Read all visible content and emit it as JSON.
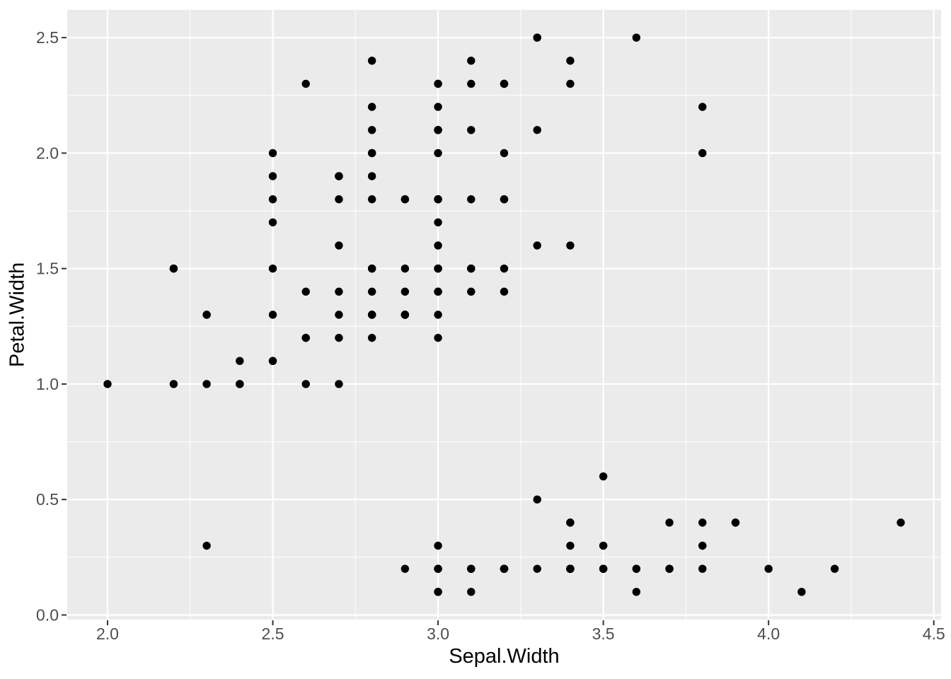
{
  "chart_data": {
    "type": "scatter",
    "title": "",
    "xlabel": "Sepal.Width",
    "ylabel": "Petal.Width",
    "x_ticks": [
      2.0,
      2.5,
      3.0,
      3.5,
      4.0,
      4.5
    ],
    "y_ticks": [
      0.0,
      0.5,
      1.0,
      1.5,
      2.0,
      2.5
    ],
    "x_minor_ticks": [
      2.25,
      2.75,
      3.25,
      3.75,
      4.25
    ],
    "y_minor_ticks": [
      0.25,
      0.75,
      1.25,
      1.75,
      2.25
    ],
    "xlim": [
      1.878,
      4.522
    ],
    "ylim": [
      -0.02,
      2.62
    ],
    "tick_decimals": 1,
    "grid": true,
    "legend_position": "none",
    "point_radius_px": 5.7,
    "points": [
      [
        3.5,
        0.2
      ],
      [
        3.0,
        0.2
      ],
      [
        3.2,
        0.2
      ],
      [
        3.1,
        0.2
      ],
      [
        3.6,
        0.2
      ],
      [
        3.9,
        0.4
      ],
      [
        3.4,
        0.3
      ],
      [
        3.4,
        0.2
      ],
      [
        2.9,
        0.2
      ],
      [
        3.1,
        0.1
      ],
      [
        3.7,
        0.2
      ],
      [
        3.4,
        0.2
      ],
      [
        3.0,
        0.1
      ],
      [
        3.0,
        0.1
      ],
      [
        4.0,
        0.2
      ],
      [
        4.4,
        0.4
      ],
      [
        3.9,
        0.4
      ],
      [
        3.5,
        0.3
      ],
      [
        3.8,
        0.3
      ],
      [
        3.8,
        0.3
      ],
      [
        3.4,
        0.2
      ],
      [
        3.7,
        0.4
      ],
      [
        3.6,
        0.2
      ],
      [
        3.3,
        0.5
      ],
      [
        3.4,
        0.2
      ],
      [
        3.0,
        0.2
      ],
      [
        3.4,
        0.4
      ],
      [
        3.5,
        0.2
      ],
      [
        3.4,
        0.2
      ],
      [
        3.2,
        0.2
      ],
      [
        3.1,
        0.2
      ],
      [
        3.4,
        0.4
      ],
      [
        4.1,
        0.1
      ],
      [
        4.2,
        0.2
      ],
      [
        3.1,
        0.2
      ],
      [
        3.2,
        0.2
      ],
      [
        3.5,
        0.2
      ],
      [
        3.6,
        0.1
      ],
      [
        3.0,
        0.2
      ],
      [
        3.4,
        0.2
      ],
      [
        3.5,
        0.3
      ],
      [
        2.3,
        0.3
      ],
      [
        3.2,
        0.2
      ],
      [
        3.5,
        0.6
      ],
      [
        3.8,
        0.4
      ],
      [
        3.0,
        0.3
      ],
      [
        3.8,
        0.2
      ],
      [
        3.2,
        0.2
      ],
      [
        3.7,
        0.2
      ],
      [
        3.3,
        0.2
      ],
      [
        3.2,
        1.4
      ],
      [
        3.2,
        1.5
      ],
      [
        3.1,
        1.5
      ],
      [
        2.3,
        1.3
      ],
      [
        2.8,
        1.5
      ],
      [
        2.8,
        1.3
      ],
      [
        3.3,
        1.6
      ],
      [
        2.4,
        1.0
      ],
      [
        2.9,
        1.3
      ],
      [
        2.7,
        1.4
      ],
      [
        2.0,
        1.0
      ],
      [
        3.0,
        1.5
      ],
      [
        2.2,
        1.0
      ],
      [
        2.9,
        1.4
      ],
      [
        2.9,
        1.3
      ],
      [
        3.1,
        1.4
      ],
      [
        3.0,
        1.5
      ],
      [
        2.7,
        1.0
      ],
      [
        2.2,
        1.5
      ],
      [
        2.5,
        1.1
      ],
      [
        3.2,
        1.8
      ],
      [
        2.8,
        1.3
      ],
      [
        2.5,
        1.5
      ],
      [
        2.8,
        1.2
      ],
      [
        2.9,
        1.3
      ],
      [
        3.0,
        1.4
      ],
      [
        2.8,
        1.4
      ],
      [
        3.0,
        1.7
      ],
      [
        2.9,
        1.5
      ],
      [
        2.6,
        1.0
      ],
      [
        2.4,
        1.1
      ],
      [
        2.4,
        1.0
      ],
      [
        2.7,
        1.2
      ],
      [
        2.7,
        1.6
      ],
      [
        3.0,
        1.5
      ],
      [
        3.4,
        1.6
      ],
      [
        3.1,
        1.5
      ],
      [
        2.3,
        1.3
      ],
      [
        3.0,
        1.3
      ],
      [
        2.5,
        1.3
      ],
      [
        2.6,
        1.2
      ],
      [
        3.0,
        1.4
      ],
      [
        2.6,
        1.2
      ],
      [
        2.3,
        1.0
      ],
      [
        2.7,
        1.3
      ],
      [
        3.0,
        1.2
      ],
      [
        2.9,
        1.3
      ],
      [
        2.9,
        1.3
      ],
      [
        2.5,
        1.1
      ],
      [
        2.8,
        1.3
      ],
      [
        3.3,
        2.5
      ],
      [
        2.7,
        1.9
      ],
      [
        3.0,
        2.1
      ],
      [
        2.9,
        1.8
      ],
      [
        3.0,
        2.2
      ],
      [
        3.0,
        2.1
      ],
      [
        2.5,
        1.7
      ],
      [
        2.9,
        1.8
      ],
      [
        2.5,
        1.8
      ],
      [
        3.6,
        2.5
      ],
      [
        3.2,
        2.0
      ],
      [
        2.7,
        1.9
      ],
      [
        3.0,
        2.1
      ],
      [
        2.5,
        2.0
      ],
      [
        2.8,
        2.4
      ],
      [
        3.2,
        2.3
      ],
      [
        3.0,
        1.8
      ],
      [
        3.8,
        2.2
      ],
      [
        2.6,
        2.3
      ],
      [
        2.2,
        1.5
      ],
      [
        3.2,
        2.3
      ],
      [
        2.8,
        2.0
      ],
      [
        2.8,
        2.0
      ],
      [
        2.7,
        1.8
      ],
      [
        3.3,
        2.1
      ],
      [
        3.2,
        1.8
      ],
      [
        2.8,
        1.8
      ],
      [
        3.0,
        1.8
      ],
      [
        2.8,
        2.1
      ],
      [
        3.0,
        1.6
      ],
      [
        2.8,
        1.9
      ],
      [
        3.8,
        2.0
      ],
      [
        2.8,
        2.2
      ],
      [
        2.8,
        1.5
      ],
      [
        2.6,
        1.4
      ],
      [
        3.0,
        2.3
      ],
      [
        3.4,
        2.4
      ],
      [
        3.1,
        1.8
      ],
      [
        3.0,
        1.8
      ],
      [
        3.1,
        2.1
      ],
      [
        3.1,
        2.4
      ],
      [
        3.1,
        2.3
      ],
      [
        2.7,
        1.9
      ],
      [
        3.2,
        2.3
      ],
      [
        3.3,
        2.5
      ],
      [
        3.0,
        2.3
      ],
      [
        2.5,
        1.9
      ],
      [
        3.0,
        2.0
      ],
      [
        3.4,
        2.3
      ],
      [
        3.0,
        1.8
      ]
    ],
    "colors": {
      "outer_background": "#FFFFFF",
      "panel_background": "#EBEBEB",
      "grid_major": "#FFFFFF",
      "grid_minor": "#FFFFFF",
      "point": "#000000",
      "tick_label": "#4D4D4D",
      "tick_mark": "#333333",
      "axis_title": "#000000"
    }
  }
}
